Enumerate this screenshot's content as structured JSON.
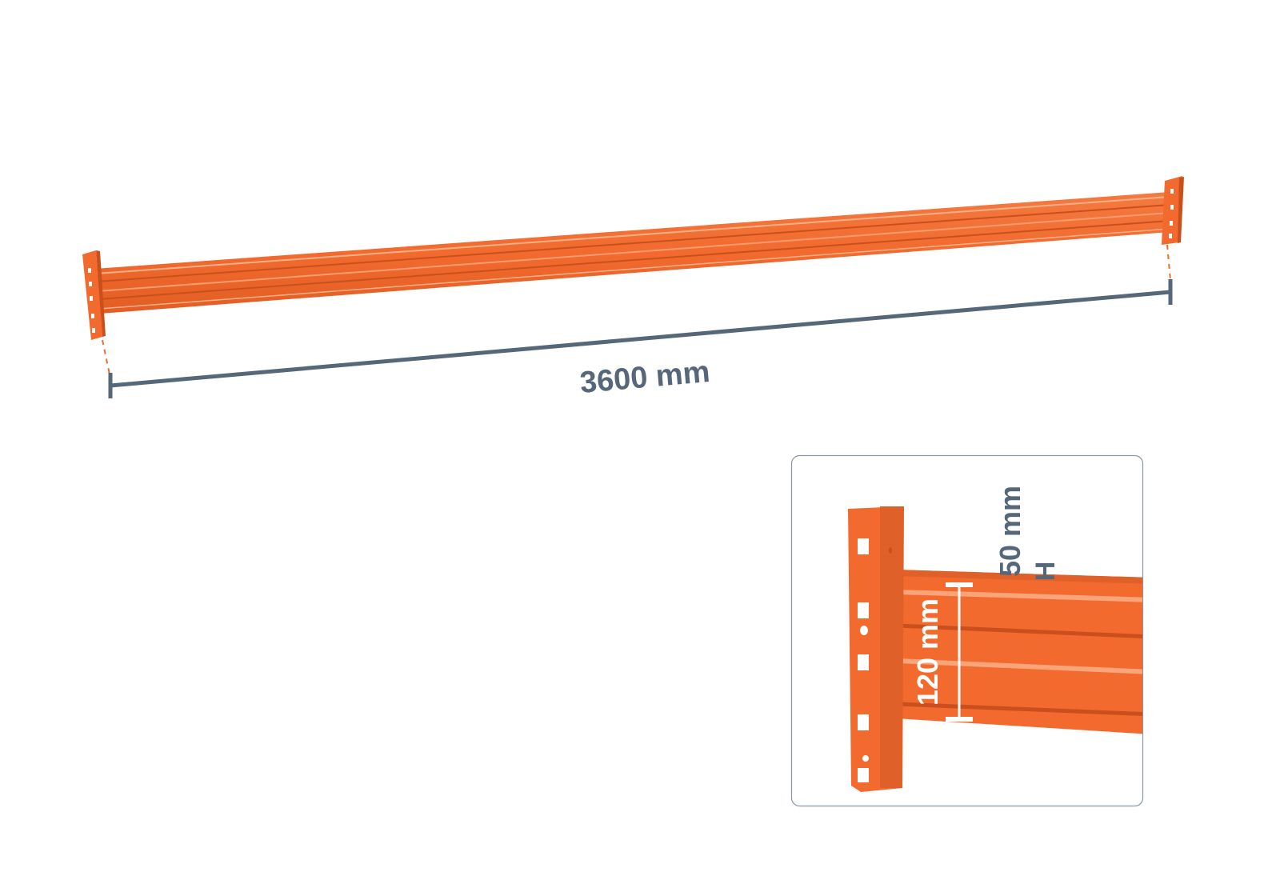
{
  "main_dimension": {
    "label": "3600 mm"
  },
  "detail_inset": {
    "height_label": "120 mm",
    "depth_label": "50 mm",
    "depth_axis_label": "H"
  },
  "colors": {
    "beam_orange": "#f26a2e",
    "beam_dark": "#c9501d",
    "dimension_gray": "#56677a",
    "inset_border": "#8a96a3"
  }
}
